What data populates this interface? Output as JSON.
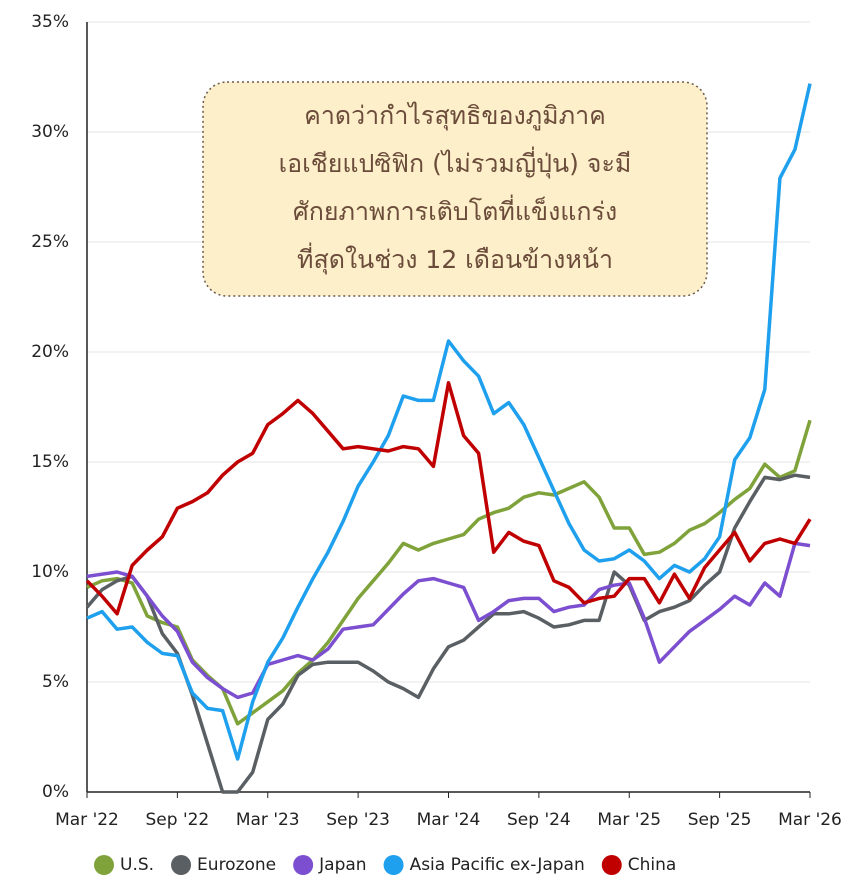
{
  "chart_data": {
    "type": "line",
    "annotation": [
      "คาดว่ากำไรสุทธิของภูมิภาค",
      "เอเชียแปซิฟิก (ไม่รวมญี่ปุ่น) จะมี",
      "ศักยภาพการเติบโตที่แข็งแกร่ง",
      "ที่สุดในช่วง 12 เดือนข้างหน้า"
    ],
    "categories": [
      "Mar '22",
      null,
      null,
      null,
      null,
      null,
      "Sep '22",
      null,
      null,
      null,
      null,
      null,
      "Mar '23",
      null,
      null,
      null,
      null,
      null,
      "Sep '23",
      null,
      null,
      null,
      null,
      null,
      "Mar '24",
      null,
      null,
      null,
      null,
      null,
      "Sep '24",
      null,
      null,
      null,
      null,
      null,
      "Mar '25",
      null,
      null,
      null,
      null,
      null,
      "Sep '25",
      null,
      null,
      null,
      null,
      null,
      "Mar '26"
    ],
    "series": [
      {
        "name": "U.S.",
        "color": "#7fa33a",
        "values": [
          9.3,
          9.6,
          9.7,
          9.5,
          8.0,
          7.7,
          7.5,
          6.0,
          5.3,
          4.7,
          3.1,
          3.6,
          4.1,
          4.6,
          5.4,
          6.0,
          6.8,
          7.8,
          8.8,
          9.6,
          10.4,
          11.3,
          11.0,
          11.3,
          11.5,
          11.7,
          12.4,
          12.7,
          12.9,
          13.4,
          13.6,
          13.5,
          13.8,
          14.1,
          13.4,
          12.0,
          12.0,
          10.8,
          10.9,
          11.3,
          11.9,
          12.2,
          12.7,
          13.3,
          13.8,
          14.9,
          14.3,
          14.6,
          16.9
        ]
      },
      {
        "name": "Eurozone",
        "color": "#5a5f63",
        "values": [
          8.4,
          9.2,
          9.6,
          9.8,
          8.9,
          7.2,
          6.3,
          4.4,
          2.2,
          0,
          0,
          0.9,
          3.3,
          4.0,
          5.3,
          5.8,
          5.9,
          5.9,
          5.9,
          5.5,
          5.0,
          4.7,
          4.3,
          5.6,
          6.6,
          6.9,
          7.5,
          8.1,
          8.1,
          8.2,
          7.9,
          7.5,
          7.6,
          7.8,
          7.8,
          10.0,
          9.4,
          7.8,
          8.2,
          8.4,
          8.7,
          9.4,
          10.0,
          12.0,
          13.2,
          14.3,
          14.2,
          14.4,
          14.3
        ]
      },
      {
        "name": "Japan",
        "color": "#7b4fd0",
        "values": [
          9.8,
          9.9,
          10.0,
          9.8,
          8.9,
          8.0,
          7.3,
          5.9,
          5.2,
          4.7,
          4.3,
          4.5,
          5.8,
          6.0,
          6.2,
          6.0,
          6.5,
          7.4,
          7.5,
          7.6,
          8.3,
          9.0,
          9.6,
          9.7,
          9.5,
          9.3,
          7.8,
          8.2,
          8.7,
          8.8,
          8.8,
          8.2,
          8.4,
          8.5,
          9.2,
          9.4,
          9.5,
          7.9,
          5.9,
          6.6,
          7.3,
          7.8,
          8.3,
          8.9,
          8.5,
          9.5,
          8.9,
          11.3,
          11.2
        ]
      },
      {
        "name": "Asia Pacific ex-Japan",
        "color": "#1ea0ee",
        "values": [
          7.9,
          8.2,
          7.4,
          7.5,
          6.8,
          6.3,
          6.2,
          4.5,
          3.8,
          3.7,
          1.5,
          4.1,
          5.9,
          7.0,
          8.4,
          9.7,
          10.9,
          12.3,
          13.9,
          15.0,
          16.2,
          18.0,
          17.8,
          17.8,
          20.5,
          19.6,
          18.9,
          17.2,
          17.7,
          16.7,
          15.2,
          13.7,
          12.2,
          11.0,
          10.5,
          10.6,
          11.0,
          10.5,
          9.7,
          10.3,
          10.0,
          10.6,
          11.6,
          15.1,
          16.1,
          18.3,
          27.9,
          29.2,
          32.2
        ]
      },
      {
        "name": "China",
        "color": "#c00000",
        "values": [
          9.6,
          8.9,
          8.1,
          10.3,
          11.0,
          11.6,
          12.9,
          13.2,
          13.6,
          14.4,
          15.0,
          15.4,
          16.7,
          17.2,
          17.8,
          17.2,
          16.4,
          15.6,
          15.7,
          15.6,
          15.5,
          15.7,
          15.6,
          14.8,
          18.6,
          16.2,
          15.4,
          10.9,
          11.8,
          11.4,
          11.2,
          9.6,
          9.3,
          8.6,
          8.8,
          8.9,
          9.7,
          9.7,
          8.6,
          9.9,
          8.8,
          10.2,
          11.0,
          11.8,
          10.5,
          11.3,
          11.5,
          11.3,
          12.4
        ]
      }
    ],
    "ylim": [
      0,
      35
    ],
    "yticks": [
      {
        "value": 0,
        "label": "0%"
      },
      {
        "value": 5,
        "label": "5%"
      },
      {
        "value": 10,
        "label": "10%"
      },
      {
        "value": 15,
        "label": "15%"
      },
      {
        "value": 20,
        "label": "20%"
      },
      {
        "value": 25,
        "label": "25%"
      },
      {
        "value": 30,
        "label": "30%"
      },
      {
        "value": 35,
        "label": "35%"
      }
    ],
    "grid": true,
    "legend": "bottom"
  }
}
